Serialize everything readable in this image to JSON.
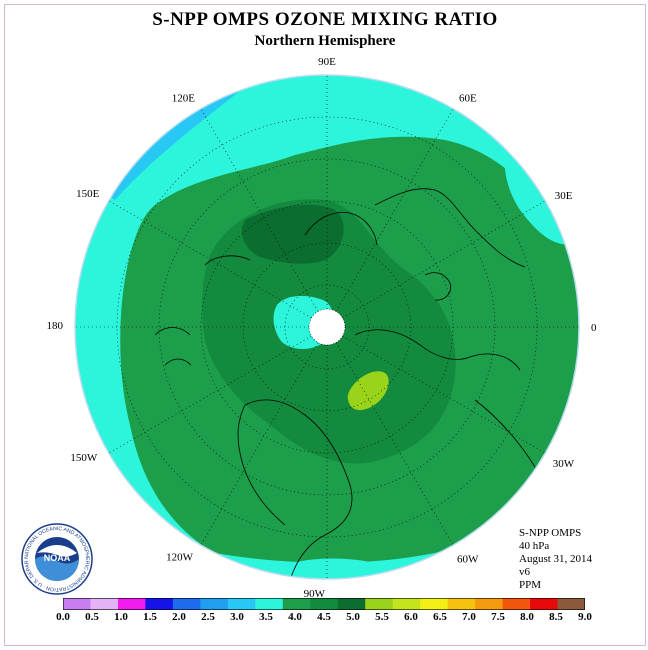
{
  "title": "S-NPP OMPS OZONE MIXING RATIO",
  "subtitle": "Northern Hemisphere",
  "longitude_labels": [
    "90E",
    "60E",
    "30E",
    "0",
    "30W",
    "60W",
    "90W",
    "120W",
    "150W",
    "180",
    "150E",
    "120E"
  ],
  "info": {
    "instrument": "S-NPP OMPS",
    "level": "40 hPa",
    "date": "August 31, 2014",
    "version": "v6",
    "units": "PPM"
  },
  "logo_text": "NOAA",
  "logo_ring_text": "NATIONAL OCEANIC AND ATMOSPHERIC ADMINISTRATION · U.S. DEPARTMENT OF COMMERCE ·",
  "colorbar": {
    "ticks": [
      "0.0",
      "0.5",
      "1.0",
      "1.5",
      "2.0",
      "2.5",
      "3.0",
      "3.5",
      "4.0",
      "4.5",
      "5.0",
      "5.5",
      "6.0",
      "6.5",
      "7.0",
      "7.5",
      "8.0",
      "8.5",
      "9.0"
    ],
    "colors": [
      "#c77ef2",
      "#e3b3f5",
      "#f21cef",
      "#1414e8",
      "#1e6cee",
      "#1f9fee",
      "#27c8f3",
      "#2cf5dc",
      "#1d9e4a",
      "#138a3e",
      "#0b6e30",
      "#9ad41a",
      "#c4e51b",
      "#f3f015",
      "#f4c20f",
      "#f49b0d",
      "#f2560d",
      "#e80a0a",
      "#8b5a3a"
    ]
  },
  "legend_colors": {
    "land_outline": "#000000",
    "disc_edge": "#b7dcef"
  }
}
